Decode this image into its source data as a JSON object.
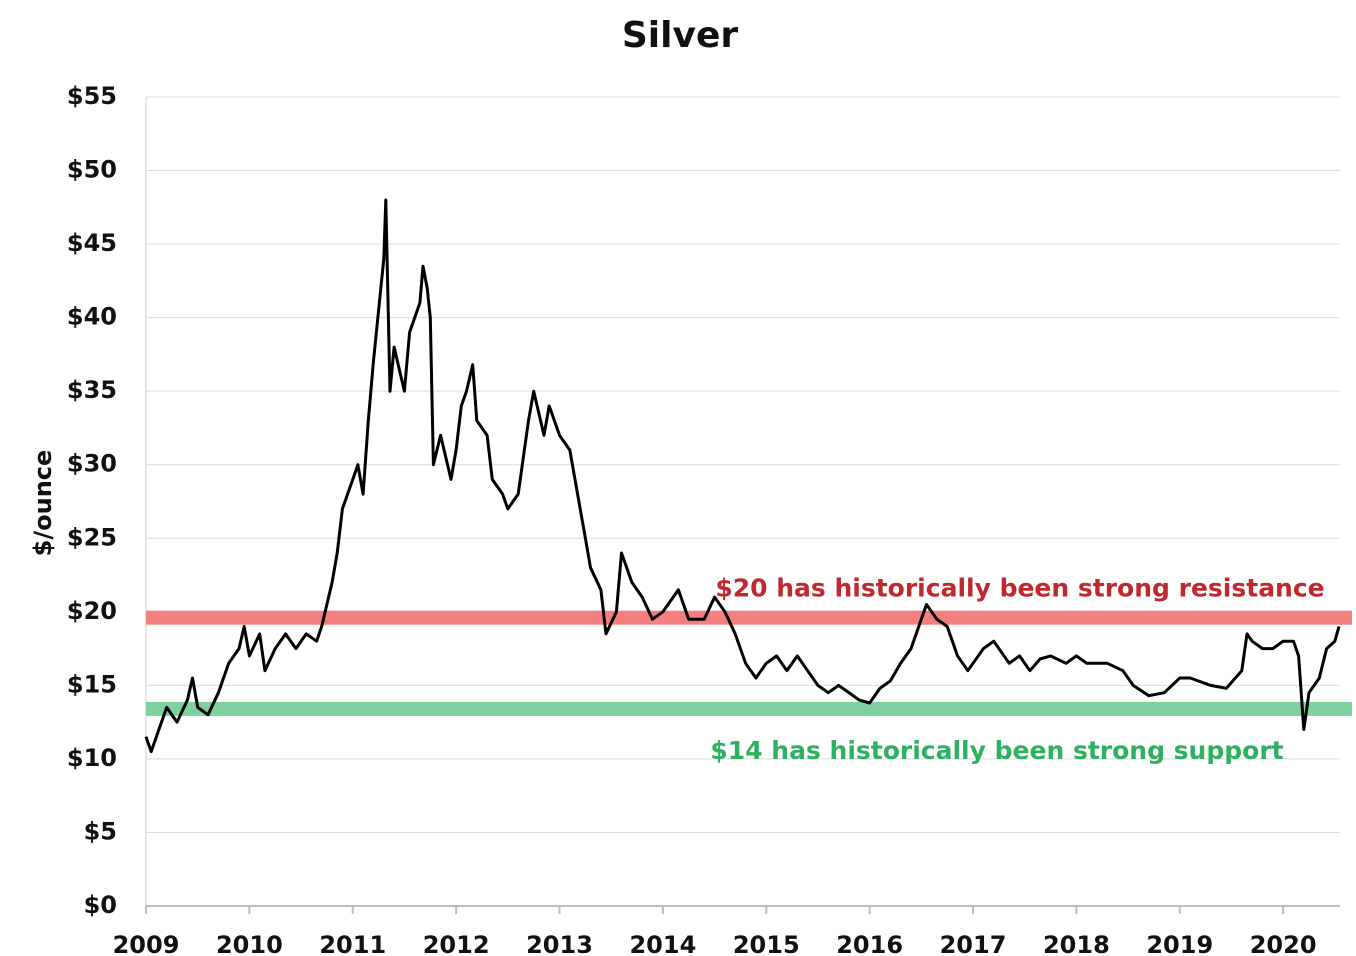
{
  "chart_data": {
    "type": "line",
    "title": "Silver",
    "y_label": "$/ounce",
    "xlim": [
      2009,
      2020.55
    ],
    "xticks": [
      2009,
      2010,
      2011,
      2012,
      2013,
      2014,
      2015,
      2016,
      2017,
      2018,
      2019,
      2020
    ],
    "ylim": [
      0,
      55
    ],
    "yticks": [
      {
        "value": 0,
        "label": "$0"
      },
      {
        "value": 5,
        "label": "$5"
      },
      {
        "value": 10,
        "label": "$10"
      },
      {
        "value": 15,
        "label": "$15"
      },
      {
        "value": 20,
        "label": "$20"
      },
      {
        "value": 25,
        "label": "$25"
      },
      {
        "value": 30,
        "label": "$30"
      },
      {
        "value": 35,
        "label": "$35"
      },
      {
        "value": 40,
        "label": "$40"
      },
      {
        "value": 45,
        "label": "$45"
      },
      {
        "value": 50,
        "label": "$50"
      },
      {
        "value": 55,
        "label": "$55"
      }
    ],
    "grid": true,
    "series": [
      {
        "color": "#000000",
        "x": [
          2009.0,
          2009.05,
          2009.15,
          2009.2,
          2009.3,
          2009.4,
          2009.45,
          2009.5,
          2009.6,
          2009.7,
          2009.8,
          2009.9,
          2009.95,
          2010.0,
          2010.1,
          2010.15,
          2010.25,
          2010.35,
          2010.45,
          2010.55,
          2010.65,
          2010.7,
          2010.8,
          2010.85,
          2010.9,
          2011.0,
          2011.05,
          2011.1,
          2011.15,
          2011.2,
          2011.3,
          2011.32,
          2011.36,
          2011.4,
          2011.5,
          2011.55,
          2011.65,
          2011.68,
          2011.72,
          2011.75,
          2011.78,
          2011.85,
          2011.95,
          2012.0,
          2012.05,
          2012.1,
          2012.16,
          2012.2,
          2012.3,
          2012.35,
          2012.45,
          2012.5,
          2012.6,
          2012.7,
          2012.75,
          2012.85,
          2012.9,
          2013.0,
          2013.1,
          2013.15,
          2013.25,
          2013.3,
          2013.4,
          2013.45,
          2013.55,
          2013.6,
          2013.7,
          2013.8,
          2013.9,
          2014.0,
          2014.15,
          2014.25,
          2014.4,
          2014.5,
          2014.6,
          2014.7,
          2014.8,
          2014.9,
          2015.0,
          2015.1,
          2015.2,
          2015.3,
          2015.4,
          2015.5,
          2015.6,
          2015.7,
          2015.8,
          2015.9,
          2016.0,
          2016.1,
          2016.2,
          2016.3,
          2016.4,
          2016.5,
          2016.55,
          2016.65,
          2016.75,
          2016.85,
          2016.95,
          2017.0,
          2017.1,
          2017.2,
          2017.35,
          2017.45,
          2017.55,
          2017.65,
          2017.75,
          2017.9,
          2018.0,
          2018.1,
          2018.3,
          2018.45,
          2018.55,
          2018.7,
          2018.85,
          2019.0,
          2019.1,
          2019.3,
          2019.45,
          2019.6,
          2019.65,
          2019.7,
          2019.8,
          2019.9,
          2020.0,
          2020.1,
          2020.15,
          2020.2,
          2020.25,
          2020.35,
          2020.42,
          2020.5,
          2020.54
        ],
        "values": [
          11.5,
          10.5,
          12.5,
          13.5,
          12.5,
          14,
          15.5,
          13.5,
          13,
          14.5,
          16.5,
          17.5,
          19,
          17,
          18.5,
          16,
          17.5,
          18.5,
          17.5,
          18.5,
          18,
          19,
          22,
          24,
          27,
          29,
          30,
          28,
          33,
          37,
          44,
          48,
          35,
          38,
          35,
          39,
          41,
          43.5,
          42,
          40,
          30,
          32,
          29,
          31,
          34,
          35,
          36.8,
          33,
          32,
          29,
          28,
          27,
          28,
          33,
          35,
          32,
          34,
          32,
          31,
          29,
          25,
          23,
          21.5,
          18.5,
          20,
          24,
          22,
          21,
          19.5,
          20,
          21.5,
          19.5,
          19.5,
          21,
          20,
          18.5,
          16.5,
          15.5,
          16.5,
          17,
          16,
          17,
          16,
          15,
          14.5,
          15,
          14.5,
          14,
          13.8,
          14.8,
          15.3,
          16.5,
          17.5,
          19.5,
          20.5,
          19.5,
          19,
          17,
          16,
          16.5,
          17.5,
          18,
          16.5,
          17,
          16,
          16.8,
          17,
          16.5,
          17,
          16.5,
          16.5,
          16,
          15,
          14.3,
          14.5,
          15.5,
          15.5,
          15,
          14.8,
          16,
          18.5,
          18,
          17.5,
          17.5,
          18,
          18,
          17,
          12,
          14.5,
          15.5,
          17.5,
          18,
          19
        ]
      }
    ],
    "bands": [
      {
        "value": 19.6,
        "color": "#f47f7f",
        "label": "$20 has historically been strong resistance",
        "label_color": "#c0282d"
      },
      {
        "value": 13.4,
        "color": "#7fd1a0",
        "label": "$14 has historically been strong support",
        "label_color": "#2eb062"
      }
    ]
  }
}
